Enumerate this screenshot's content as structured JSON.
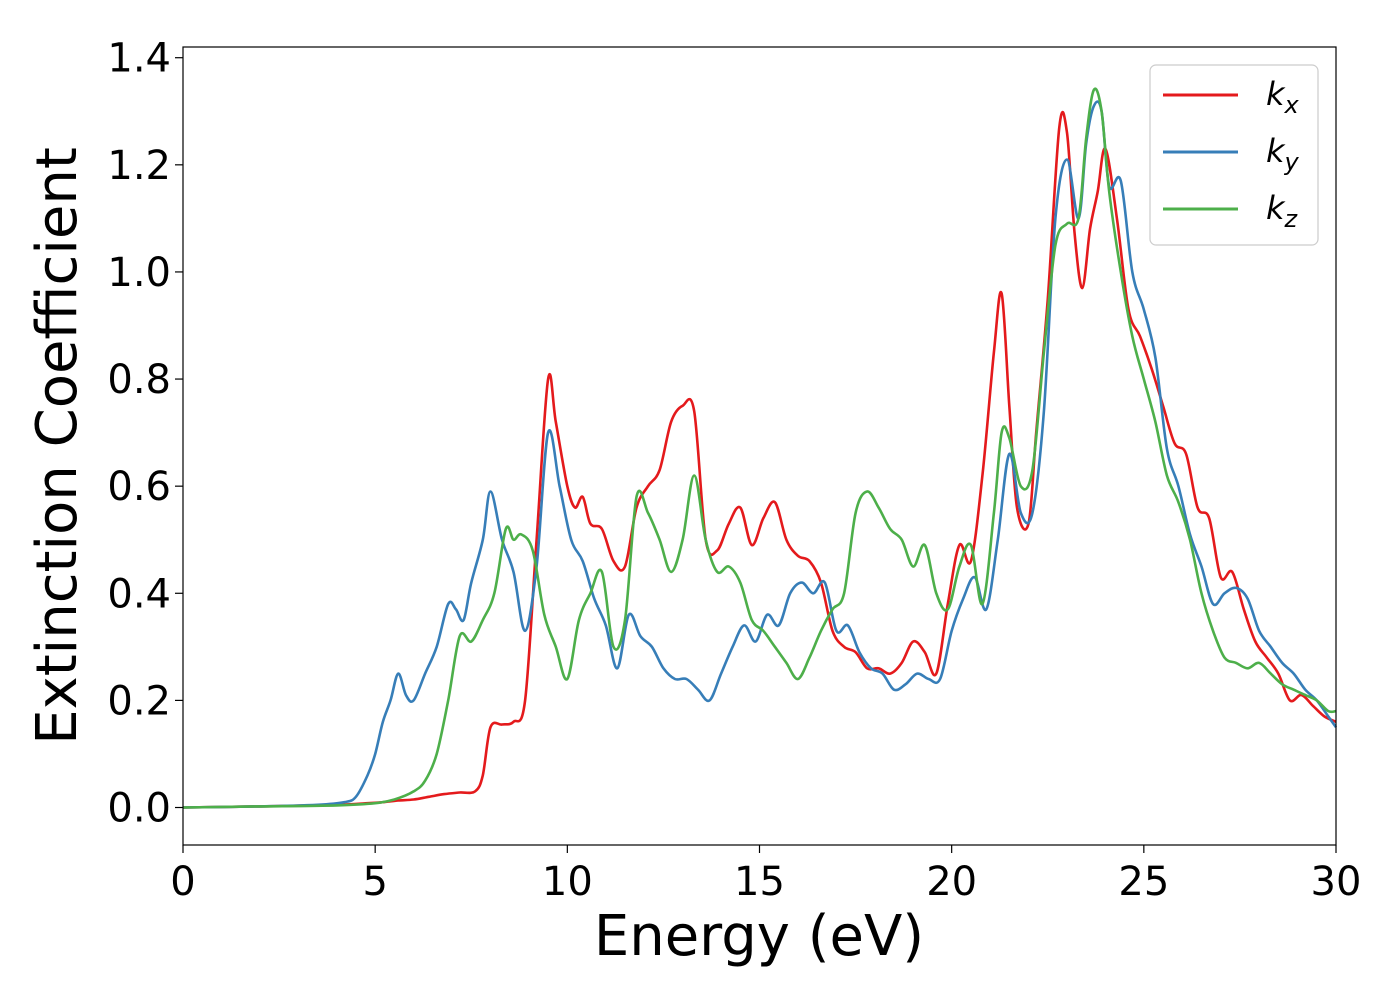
{
  "chart_data": {
    "type": "line",
    "title": "",
    "xlabel": "Energy (eV)",
    "ylabel": "Extinction Coefficient",
    "xlim": [
      0,
      30
    ],
    "ylim": [
      -0.07,
      1.42
    ],
    "xticks": [
      0,
      5,
      10,
      15,
      20,
      25,
      30
    ],
    "yticks": [
      0.0,
      0.2,
      0.4,
      0.6,
      0.8,
      1.0,
      1.2,
      1.4
    ],
    "xtick_labels": [
      "0",
      "5",
      "10",
      "15",
      "20",
      "25",
      "30"
    ],
    "ytick_labels": [
      "0.0",
      "0.2",
      "0.4",
      "0.6",
      "0.8",
      "1.0",
      "1.2",
      "1.4"
    ],
    "grid": false,
    "legend_position": "top-right",
    "series": [
      {
        "name": "k_x",
        "label_main": "k",
        "label_sub": "x",
        "color": "#e41a1c",
        "x": [
          0,
          2,
          4,
          4.8,
          5.2,
          5.6,
          6.0,
          6.4,
          6.8,
          7.2,
          7.6,
          7.8,
          8.0,
          8.3,
          8.6,
          8.9,
          9.2,
          9.5,
          9.7,
          10.0,
          10.2,
          10.4,
          10.6,
          10.9,
          11.2,
          11.5,
          11.8,
          12.1,
          12.4,
          12.7,
          13.0,
          13.3,
          13.6,
          13.9,
          14.2,
          14.5,
          14.8,
          15.1,
          15.4,
          15.7,
          16.0,
          16.3,
          16.6,
          16.9,
          17.2,
          17.5,
          17.8,
          18.1,
          18.4,
          18.7,
          19.0,
          19.3,
          19.6,
          19.9,
          20.2,
          20.5,
          20.8,
          21.1,
          21.3,
          21.5,
          21.7,
          22.0,
          22.2,
          22.5,
          22.8,
          23.0,
          23.2,
          23.4,
          23.6,
          23.8,
          24.0,
          24.3,
          24.6,
          24.9,
          25.2,
          25.5,
          25.8,
          26.1,
          26.4,
          26.7,
          27.0,
          27.3,
          27.6,
          27.9,
          28.2,
          28.5,
          28.8,
          29.1,
          29.4,
          29.7,
          30.0
        ],
        "values": [
          0,
          0.002,
          0.005,
          0.008,
          0.01,
          0.013,
          0.015,
          0.02,
          0.025,
          0.028,
          0.03,
          0.06,
          0.15,
          0.155,
          0.16,
          0.2,
          0.5,
          0.8,
          0.72,
          0.6,
          0.56,
          0.58,
          0.53,
          0.52,
          0.46,
          0.45,
          0.56,
          0.6,
          0.63,
          0.72,
          0.75,
          0.74,
          0.5,
          0.48,
          0.53,
          0.56,
          0.49,
          0.54,
          0.57,
          0.5,
          0.47,
          0.46,
          0.42,
          0.33,
          0.3,
          0.29,
          0.26,
          0.26,
          0.25,
          0.27,
          0.31,
          0.29,
          0.25,
          0.38,
          0.49,
          0.46,
          0.62,
          0.85,
          0.96,
          0.75,
          0.56,
          0.53,
          0.7,
          0.95,
          1.27,
          1.26,
          1.07,
          0.97,
          1.08,
          1.15,
          1.23,
          1.1,
          0.93,
          0.88,
          0.82,
          0.75,
          0.68,
          0.66,
          0.56,
          0.54,
          0.43,
          0.44,
          0.37,
          0.31,
          0.28,
          0.25,
          0.2,
          0.21,
          0.19,
          0.17,
          0.16
        ]
      },
      {
        "name": "k_y",
        "label_main": "k",
        "label_sub": "y",
        "color": "#377eb8",
        "x": [
          0,
          2,
          3.5,
          4.2,
          4.5,
          4.8,
          5.0,
          5.2,
          5.4,
          5.6,
          5.8,
          6.0,
          6.3,
          6.6,
          6.9,
          7.1,
          7.3,
          7.5,
          7.8,
          8.0,
          8.3,
          8.6,
          8.9,
          9.2,
          9.5,
          9.8,
          10.1,
          10.4,
          10.7,
          11.0,
          11.3,
          11.6,
          11.9,
          12.2,
          12.5,
          12.8,
          13.1,
          13.4,
          13.7,
          14.0,
          14.3,
          14.6,
          14.9,
          15.2,
          15.5,
          15.8,
          16.1,
          16.4,
          16.7,
          17.0,
          17.3,
          17.6,
          17.9,
          18.2,
          18.5,
          18.8,
          19.1,
          19.4,
          19.7,
          20.0,
          20.3,
          20.6,
          20.9,
          21.2,
          21.5,
          21.8,
          22.1,
          22.4,
          22.7,
          23.0,
          23.3,
          23.5,
          23.7,
          23.9,
          24.1,
          24.4,
          24.7,
          25.0,
          25.3,
          25.6,
          25.9,
          26.2,
          26.5,
          26.8,
          27.1,
          27.4,
          27.7,
          28.0,
          28.3,
          28.6,
          28.9,
          29.2,
          29.5,
          29.8,
          30.0
        ],
        "values": [
          0,
          0.002,
          0.005,
          0.01,
          0.02,
          0.06,
          0.1,
          0.16,
          0.2,
          0.25,
          0.21,
          0.2,
          0.25,
          0.3,
          0.38,
          0.37,
          0.35,
          0.42,
          0.5,
          0.59,
          0.5,
          0.44,
          0.33,
          0.45,
          0.7,
          0.6,
          0.5,
          0.46,
          0.39,
          0.34,
          0.26,
          0.36,
          0.32,
          0.3,
          0.26,
          0.24,
          0.24,
          0.22,
          0.2,
          0.25,
          0.3,
          0.34,
          0.31,
          0.36,
          0.34,
          0.4,
          0.42,
          0.4,
          0.42,
          0.33,
          0.34,
          0.29,
          0.26,
          0.25,
          0.22,
          0.23,
          0.25,
          0.24,
          0.24,
          0.33,
          0.39,
          0.43,
          0.37,
          0.5,
          0.66,
          0.55,
          0.55,
          0.74,
          1.1,
          1.21,
          1.1,
          1.24,
          1.31,
          1.3,
          1.16,
          1.17,
          1.0,
          0.93,
          0.84,
          0.67,
          0.6,
          0.51,
          0.45,
          0.38,
          0.4,
          0.41,
          0.39,
          0.33,
          0.3,
          0.27,
          0.25,
          0.22,
          0.2,
          0.17,
          0.15
        ]
      },
      {
        "name": "k_z",
        "label_main": "k",
        "label_sub": "z",
        "color": "#4daf4a",
        "x": [
          0,
          2,
          4,
          5,
          5.5,
          6.0,
          6.3,
          6.6,
          6.9,
          7.2,
          7.5,
          7.8,
          8.1,
          8.4,
          8.6,
          8.8,
          9.1,
          9.4,
          9.7,
          10.0,
          10.3,
          10.6,
          10.9,
          11.2,
          11.5,
          11.8,
          12.1,
          12.4,
          12.7,
          13.0,
          13.3,
          13.6,
          13.9,
          14.2,
          14.5,
          14.8,
          15.1,
          15.4,
          15.7,
          16.0,
          16.3,
          16.6,
          16.9,
          17.2,
          17.5,
          17.8,
          18.1,
          18.4,
          18.7,
          19.0,
          19.3,
          19.6,
          19.9,
          20.2,
          20.5,
          20.8,
          21.1,
          21.3,
          21.5,
          21.8,
          22.1,
          22.4,
          22.7,
          23.0,
          23.3,
          23.5,
          23.7,
          23.9,
          24.1,
          24.4,
          24.7,
          25.0,
          25.3,
          25.6,
          25.9,
          26.2,
          26.5,
          26.8,
          27.1,
          27.4,
          27.7,
          28.0,
          28.3,
          28.6,
          28.9,
          29.2,
          29.5,
          29.8,
          30.0
        ],
        "values": [
          0,
          0.002,
          0.004,
          0.008,
          0.015,
          0.03,
          0.05,
          0.1,
          0.2,
          0.32,
          0.31,
          0.35,
          0.4,
          0.52,
          0.5,
          0.51,
          0.48,
          0.36,
          0.3,
          0.24,
          0.35,
          0.4,
          0.44,
          0.3,
          0.35,
          0.58,
          0.55,
          0.5,
          0.44,
          0.5,
          0.62,
          0.5,
          0.44,
          0.45,
          0.42,
          0.35,
          0.33,
          0.3,
          0.27,
          0.24,
          0.28,
          0.33,
          0.37,
          0.4,
          0.55,
          0.59,
          0.56,
          0.52,
          0.5,
          0.45,
          0.49,
          0.4,
          0.37,
          0.45,
          0.49,
          0.38,
          0.55,
          0.7,
          0.69,
          0.6,
          0.63,
          0.85,
          1.05,
          1.09,
          1.1,
          1.25,
          1.34,
          1.3,
          1.15,
          1.0,
          0.88,
          0.8,
          0.72,
          0.62,
          0.57,
          0.5,
          0.4,
          0.33,
          0.28,
          0.27,
          0.26,
          0.27,
          0.25,
          0.23,
          0.22,
          0.21,
          0.2,
          0.18,
          0.18
        ]
      }
    ]
  }
}
